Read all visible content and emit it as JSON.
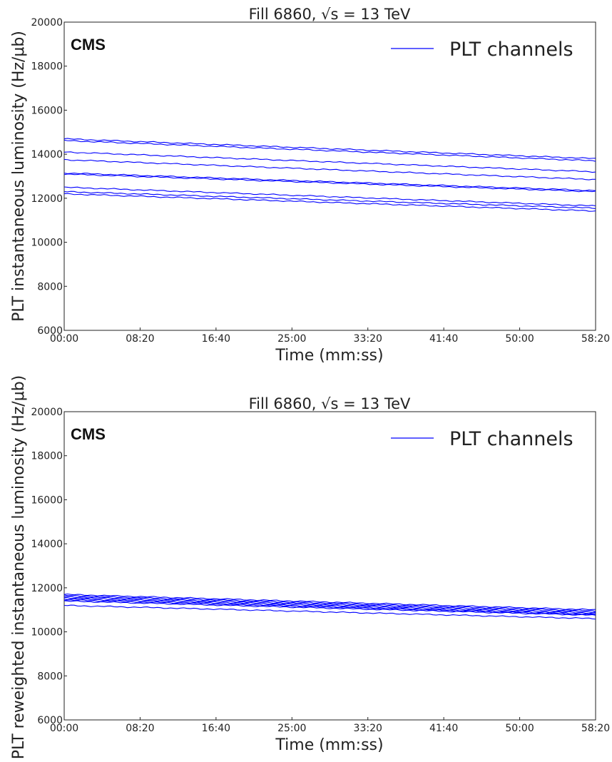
{
  "chart_data": [
    {
      "type": "line",
      "id": "top",
      "title": "Fill 6860, √s = 13 TeV",
      "xlabel": "Time (mm:ss)",
      "ylabel": "PLT instantaneous luminosity (Hz/μb)",
      "xlim": [
        0,
        3500
      ],
      "ylim": [
        6000,
        20000
      ],
      "xticks": [
        0,
        500,
        1000,
        1500,
        2000,
        2500,
        3000,
        3500
      ],
      "xtick_labels": [
        "00:00",
        "08:20",
        "16:40",
        "25:00",
        "33:20",
        "41:40",
        "50:00",
        "58:20"
      ],
      "yticks": [
        6000,
        8000,
        10000,
        12000,
        14000,
        16000,
        18000,
        20000
      ],
      "ytick_labels": [
        "6000",
        "8000",
        "10000",
        "12000",
        "14000",
        "16000",
        "18000",
        "20000"
      ],
      "experiment_label": "CMS",
      "legend": {
        "label": "PLT channels",
        "position": "top-right",
        "color": "#0000ff"
      },
      "grid": false,
      "line_color": "#0000ff",
      "series": [
        {
          "x": [
            0,
            3500
          ],
          "y": [
            14700,
            13800
          ]
        },
        {
          "x": [
            0,
            3500
          ],
          "y": [
            14620,
            13700
          ]
        },
        {
          "x": [
            0,
            3500
          ],
          "y": [
            14100,
            13200
          ]
        },
        {
          "x": [
            0,
            3500
          ],
          "y": [
            13750,
            12850
          ]
        },
        {
          "x": [
            0,
            3500
          ],
          "y": [
            13150,
            12350
          ]
        },
        {
          "x": [
            0,
            3500
          ],
          "y": [
            13100,
            12300
          ]
        },
        {
          "x": [
            0,
            3500
          ],
          "y": [
            12500,
            11650
          ]
        },
        {
          "x": [
            0,
            3500
          ],
          "y": [
            12300,
            11550
          ]
        },
        {
          "x": [
            0,
            3500
          ],
          "y": [
            12200,
            11420
          ]
        }
      ]
    },
    {
      "type": "line",
      "id": "bottom",
      "title": "Fill 6860, √s = 13 TeV",
      "xlabel": "Time (mm:ss)",
      "ylabel": "PLT reweighted instantaneous luminosity (Hz/μb)",
      "xlim": [
        0,
        3500
      ],
      "ylim": [
        6000,
        20000
      ],
      "xticks": [
        0,
        500,
        1000,
        1500,
        2000,
        2500,
        3000,
        3500
      ],
      "xtick_labels": [
        "00:00",
        "08:20",
        "16:40",
        "25:00",
        "33:20",
        "41:40",
        "50:00",
        "58:20"
      ],
      "yticks": [
        6000,
        8000,
        10000,
        12000,
        14000,
        16000,
        18000,
        20000
      ],
      "ytick_labels": [
        "6000",
        "8000",
        "10000",
        "12000",
        "14000",
        "16000",
        "18000",
        "20000"
      ],
      "experiment_label": "CMS",
      "legend": {
        "label": "PLT channels",
        "position": "top-right",
        "color": "#0000ff"
      },
      "grid": false,
      "line_color": "#0000ff",
      "series": [
        {
          "x": [
            0,
            3500
          ],
          "y": [
            11700,
            11000
          ]
        },
        {
          "x": [
            0,
            3500
          ],
          "y": [
            11650,
            10950
          ]
        },
        {
          "x": [
            0,
            3500
          ],
          "y": [
            11600,
            10900
          ]
        },
        {
          "x": [
            0,
            3500
          ],
          "y": [
            11550,
            10850
          ]
        },
        {
          "x": [
            0,
            3500
          ],
          "y": [
            11500,
            10800
          ]
        },
        {
          "x": [
            0,
            3500
          ],
          "y": [
            11450,
            10780
          ]
        },
        {
          "x": [
            0,
            3500
          ],
          "y": [
            11400,
            10750
          ]
        },
        {
          "x": [
            0,
            3500
          ],
          "y": [
            11200,
            10600
          ]
        }
      ]
    }
  ]
}
